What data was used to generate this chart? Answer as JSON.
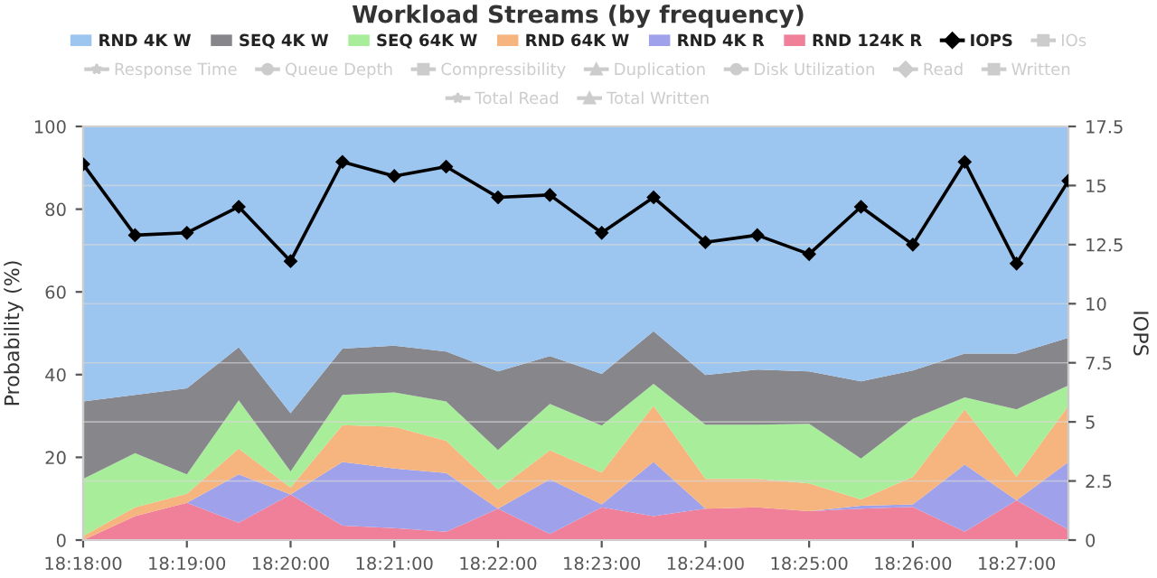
{
  "chart_data": {
    "type": "area",
    "stacked": true,
    "title": "Workload Streams (by frequency)",
    "ylabel": "Probability (%)",
    "y2label": "IOPS",
    "categories": [
      "18:18:00",
      null,
      "18:19:00",
      null,
      "18:20:00",
      null,
      "18:21:00",
      null,
      "18:22:00",
      null,
      "18:23:00",
      null,
      "18:24:00",
      null,
      "18:25:00",
      null,
      "18:26:00",
      null,
      "18:27:00",
      null
    ],
    "ylim": [
      0,
      100
    ],
    "yticks": [
      0,
      20,
      40,
      60,
      80,
      100
    ],
    "y2lim": [
      0,
      17.5
    ],
    "y2ticks": [
      0,
      2.5,
      5,
      7.5,
      10,
      12.5,
      15,
      17.5
    ],
    "grid": "y",
    "legend": "top",
    "series": [
      {
        "name": "RND 4K W",
        "color": "#9cc5ef",
        "values": [
          66.5,
          64.9,
          63.3,
          53.4,
          69.3,
          53.7,
          53,
          54.4,
          59.2,
          55.5,
          59.8,
          49.5,
          60.1,
          58.8,
          59.2,
          61.6,
          59,
          54.9,
          54.9,
          51.1
        ]
      },
      {
        "name": "SEQ 4K W",
        "color": "#87868b",
        "values": [
          18.7,
          14.1,
          20.8,
          12.8,
          14.1,
          11.2,
          11.3,
          12.1,
          19,
          11.6,
          12.5,
          12.7,
          12,
          13.3,
          12.7,
          18.7,
          11.7,
          10.6,
          13.5,
          11.5
        ]
      },
      {
        "name": "SEQ 64K W",
        "color": "#a8ed9a",
        "values": [
          13.8,
          13.1,
          4.7,
          11.7,
          3.9,
          7.3,
          8.3,
          9.5,
          9.6,
          11.2,
          11.4,
          5.3,
          13.1,
          13.1,
          14.4,
          9.9,
          14,
          2.9,
          16.3,
          4.9
        ]
      },
      {
        "name": "RND 64K W",
        "color": "#f6b57f",
        "values": [
          1,
          2.1,
          2.2,
          6.2,
          1.7,
          8.9,
          10.1,
          7.8,
          4.6,
          7,
          7.7,
          13.6,
          7.2,
          6.9,
          6.7,
          1.5,
          6.7,
          13.3,
          5.7,
          13.6
        ]
      },
      {
        "name": "RND 4K R",
        "color": "#9fa2ea",
        "values": [
          0,
          0,
          0,
          11.7,
          0,
          15.4,
          14.4,
          14.2,
          0,
          13.2,
          0.7,
          13.1,
          0,
          0,
          0,
          0.7,
          0.6,
          16.3,
          0,
          16.4
        ]
      },
      {
        "name": "RND 124K R",
        "color": "#f08099",
        "values": [
          0,
          5.8,
          9,
          4.2,
          11,
          3.5,
          2.9,
          2,
          7.6,
          1.5,
          7.9,
          5.8,
          7.6,
          7.9,
          7,
          7.6,
          8,
          2,
          9.6,
          2.5
        ]
      },
      {
        "name": "IOPS",
        "type": "line",
        "axis": "y2",
        "color": "#000000",
        "marker": "diamond",
        "values": [
          15.9,
          12.9,
          13.0,
          14.1,
          11.8,
          16.0,
          15.4,
          15.8,
          14.5,
          14.6,
          13.0,
          14.5,
          12.6,
          12.9,
          12.1,
          14.1,
          12.5,
          16.0,
          11.7,
          15.2
        ]
      },
      {
        "name": "IOs",
        "type": "line",
        "axis": "y2",
        "color": "#cccccc",
        "marker": "square",
        "values": [
          null,
          null,
          null,
          null,
          null,
          null,
          null,
          null,
          null,
          null,
          null,
          null,
          null,
          null,
          null,
          null,
          null,
          null,
          null,
          null
        ]
      },
      {
        "name": "Response Time",
        "type": "line",
        "axis": "y2",
        "color": "#cccccc",
        "marker": "star",
        "values": [
          null,
          null,
          null,
          null,
          null,
          null,
          null,
          null,
          null,
          null,
          null,
          null,
          null,
          null,
          null,
          null,
          null,
          null,
          null,
          null
        ]
      },
      {
        "name": "Queue Depth",
        "type": "line",
        "axis": "y2",
        "color": "#cccccc",
        "marker": "circle",
        "values": [
          null,
          null,
          null,
          null,
          null,
          null,
          null,
          null,
          null,
          null,
          null,
          null,
          null,
          null,
          null,
          null,
          null,
          null,
          null,
          null
        ]
      },
      {
        "name": "Compressibility",
        "type": "line",
        "axis": "y2",
        "color": "#cccccc",
        "marker": "square",
        "values": [
          null,
          null,
          null,
          null,
          null,
          null,
          null,
          null,
          null,
          null,
          null,
          null,
          null,
          null,
          null,
          null,
          null,
          null,
          null,
          null
        ]
      },
      {
        "name": "Duplication",
        "type": "line",
        "axis": "y2",
        "color": "#cccccc",
        "marker": "triangle",
        "values": [
          null,
          null,
          null,
          null,
          null,
          null,
          null,
          null,
          null,
          null,
          null,
          null,
          null,
          null,
          null,
          null,
          null,
          null,
          null,
          null
        ]
      },
      {
        "name": "Disk Utilization",
        "type": "line",
        "axis": "y2",
        "color": "#cccccc",
        "marker": "circle",
        "values": [
          null,
          null,
          null,
          null,
          null,
          null,
          null,
          null,
          null,
          null,
          null,
          null,
          null,
          null,
          null,
          null,
          null,
          null,
          null,
          null
        ]
      },
      {
        "name": "Read",
        "type": "line",
        "axis": "y2",
        "color": "#cccccc",
        "marker": "diamond",
        "values": [
          null,
          null,
          null,
          null,
          null,
          null,
          null,
          null,
          null,
          null,
          null,
          null,
          null,
          null,
          null,
          null,
          null,
          null,
          null,
          null
        ]
      },
      {
        "name": "Written",
        "type": "line",
        "axis": "y2",
        "color": "#cccccc",
        "marker": "square",
        "values": [
          null,
          null,
          null,
          null,
          null,
          null,
          null,
          null,
          null,
          null,
          null,
          null,
          null,
          null,
          null,
          null,
          null,
          null,
          null,
          null
        ]
      },
      {
        "name": "Total Read",
        "type": "line",
        "axis": "y2",
        "color": "#cccccc",
        "marker": "star",
        "values": [
          null,
          null,
          null,
          null,
          null,
          null,
          null,
          null,
          null,
          null,
          null,
          null,
          null,
          null,
          null,
          null,
          null,
          null,
          null,
          null
        ]
      },
      {
        "name": "Total Written",
        "type": "line",
        "axis": "y2",
        "color": "#cccccc",
        "marker": "triangle",
        "values": [
          null,
          null,
          null,
          null,
          null,
          null,
          null,
          null,
          null,
          null,
          null,
          null,
          null,
          null,
          null,
          null,
          null,
          null,
          null,
          null
        ]
      }
    ]
  }
}
